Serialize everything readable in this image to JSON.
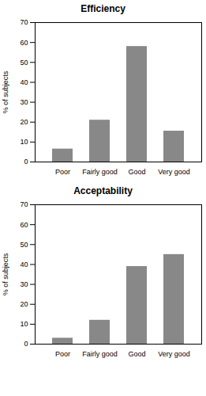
{
  "chart_data": [
    {
      "type": "bar",
      "title": "Efficiency",
      "ylabel": "% of subjects",
      "categories": [
        "Poor",
        "Fairly good",
        "Good",
        "Very good"
      ],
      "values": [
        6.5,
        21,
        58,
        15.5
      ],
      "color": "#888888",
      "ylim": [
        0,
        70
      ],
      "yticks": [
        0,
        10,
        20,
        30,
        40,
        50,
        60,
        70
      ],
      "grid": false
    },
    {
      "type": "bar",
      "title": "Acceptability",
      "ylabel": "% of subjects",
      "categories": [
        "Poor",
        "Fairly good",
        "Good",
        "Very good"
      ],
      "values": [
        3,
        12,
        39,
        45
      ],
      "color": "#888888",
      "ylim": [
        0,
        70
      ],
      "yticks": [
        0,
        10,
        20,
        30,
        40,
        50,
        60,
        70
      ],
      "grid": false
    }
  ]
}
